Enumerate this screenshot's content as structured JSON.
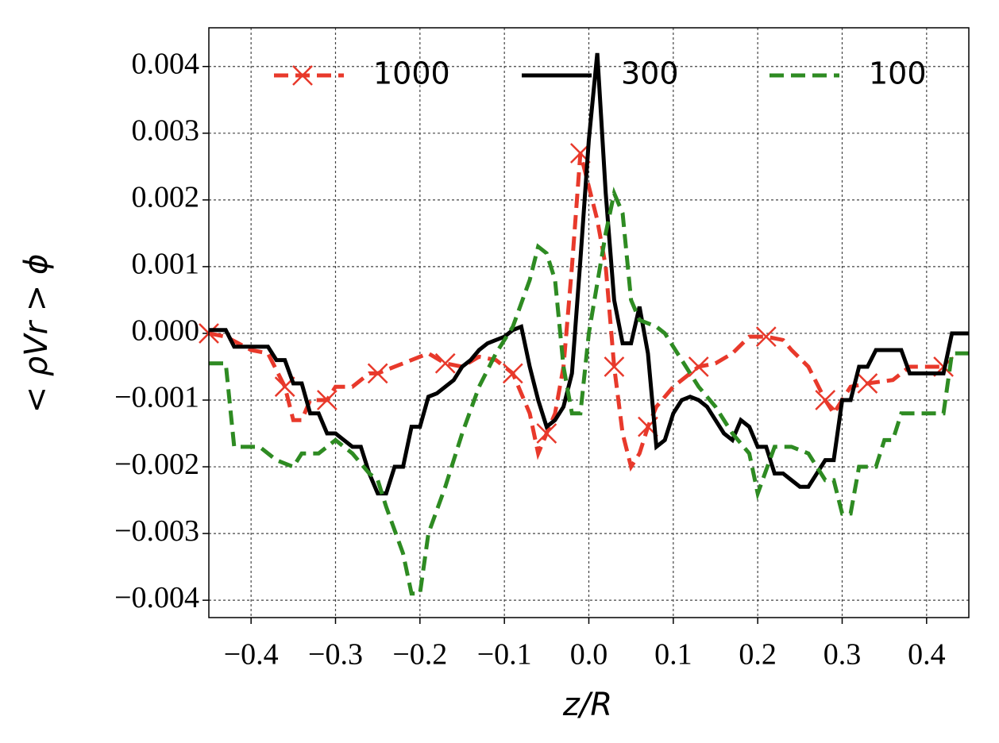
{
  "chart_data": {
    "type": "line",
    "x_label": "z/R",
    "y_label": "< ρVr > ϕ",
    "xlim": [
      -0.45,
      0.45
    ],
    "ylim": [
      -0.00426,
      0.00458
    ],
    "xticks": [
      {
        "value": -0.4,
        "label": "−0.4"
      },
      {
        "value": -0.3,
        "label": "−0.3"
      },
      {
        "value": -0.2,
        "label": "−0.2"
      },
      {
        "value": -0.1,
        "label": "−0.1"
      },
      {
        "value": 0,
        "label": "0.0"
      },
      0.1,
      0.2,
      0.3,
      0.4
    ],
    "yticks": [
      {
        "value": -0.004,
        "label": "−0.004"
      },
      {
        "value": -0.003,
        "label": "−0.003"
      },
      {
        "value": -0.002,
        "label": "−0.002"
      },
      {
        "value": -0.001,
        "label": "−0.001"
      },
      {
        "value": 0,
        "label": "0.000"
      },
      0.001,
      0.002,
      0.003,
      0.004
    ],
    "grid": true,
    "legend": "top",
    "series": [
      {
        "name": "1000",
        "color": "#e8392b",
        "dash": true,
        "marker": "x",
        "marker_every": 4,
        "x": [
          -0.45,
          -0.43,
          -0.4,
          -0.38,
          -0.36,
          -0.35,
          -0.34,
          -0.33,
          -0.31,
          -0.3,
          -0.28,
          -0.26,
          -0.25,
          -0.23,
          -0.21,
          -0.19,
          -0.17,
          -0.15,
          -0.13,
          -0.11,
          -0.09,
          -0.08,
          -0.07,
          -0.06,
          -0.05,
          -0.04,
          -0.03,
          -0.02,
          -0.01,
          0.0,
          0.01,
          0.02,
          0.03,
          0.04,
          0.05,
          0.06,
          0.07,
          0.08,
          0.1,
          0.12,
          0.13,
          0.15,
          0.17,
          0.19,
          0.21,
          0.23,
          0.24,
          0.26,
          0.28,
          0.29,
          0.3,
          0.31,
          0.33,
          0.36,
          0.38,
          0.4,
          0.42
        ],
        "values": [
          0.0,
          -5e-05,
          -0.00025,
          -0.0003,
          -0.0008,
          -0.0013,
          -0.0013,
          -0.001,
          -0.001,
          -0.0008,
          -0.0008,
          -0.0006,
          -0.0006,
          -0.0005,
          -0.0004,
          -0.0003,
          -0.00045,
          -0.0005,
          -0.00035,
          -0.0004,
          -0.0006,
          -0.0009,
          -0.0012,
          -0.0018,
          -0.0015,
          -0.0012,
          -0.0005,
          0.001,
          0.0027,
          0.0022,
          0.0017,
          0.001,
          -0.0005,
          -0.0015,
          -0.002,
          -0.0018,
          -0.0014,
          -0.0011,
          -0.0008,
          -0.0006,
          -0.0005,
          -0.00045,
          -0.0003,
          -5e-05,
          -5e-05,
          -0.0001,
          -0.00025,
          -0.0005,
          -0.001,
          -0.0012,
          -0.001,
          -0.0008,
          -0.00075,
          -0.0007,
          -0.0005,
          -0.0005,
          -0.0005
        ]
      },
      {
        "name": "300",
        "color": "#000000",
        "dash": false,
        "x": [
          -0.45,
          -0.43,
          -0.42,
          -0.38,
          -0.37,
          -0.36,
          -0.35,
          -0.34,
          -0.33,
          -0.32,
          -0.31,
          -0.3,
          -0.29,
          -0.28,
          -0.27,
          -0.26,
          -0.25,
          -0.24,
          -0.23,
          -0.22,
          -0.21,
          -0.2,
          -0.19,
          -0.18,
          -0.17,
          -0.16,
          -0.15,
          -0.14,
          -0.13,
          -0.12,
          -0.11,
          -0.1,
          -0.09,
          -0.08,
          -0.07,
          -0.06,
          -0.05,
          -0.04,
          -0.03,
          -0.02,
          -0.01,
          0.0,
          0.01,
          0.02,
          0.03,
          0.04,
          0.05,
          0.06,
          0.07,
          0.08,
          0.09,
          0.1,
          0.11,
          0.12,
          0.13,
          0.14,
          0.15,
          0.16,
          0.17,
          0.18,
          0.19,
          0.2,
          0.21,
          0.22,
          0.23,
          0.24,
          0.25,
          0.26,
          0.27,
          0.28,
          0.29,
          0.3,
          0.31,
          0.32,
          0.33,
          0.34,
          0.37,
          0.38,
          0.42,
          0.43,
          0.45
        ],
        "values": [
          5e-05,
          5e-05,
          -0.0002,
          -0.0002,
          -0.0004,
          -0.0004,
          -0.00075,
          -0.00075,
          -0.0012,
          -0.0012,
          -0.0015,
          -0.0015,
          -0.0016,
          -0.0017,
          -0.0017,
          -0.0021,
          -0.0024,
          -0.0024,
          -0.002,
          -0.002,
          -0.0014,
          -0.0014,
          -0.00095,
          -0.0009,
          -0.0008,
          -0.0007,
          -0.0005,
          -0.0004,
          -0.00025,
          -0.00015,
          -0.0001,
          -5e-05,
          5e-05,
          0.0001,
          -0.0005,
          -0.001,
          -0.0014,
          -0.0013,
          -0.0011,
          -0.0006,
          0.0011,
          0.0029,
          0.0042,
          0.0021,
          0.0005,
          -0.00015,
          -0.00015,
          0.0004,
          -0.0003,
          -0.0017,
          -0.0016,
          -0.0012,
          -0.001,
          -0.00095,
          -0.001,
          -0.0011,
          -0.0013,
          -0.0015,
          -0.0016,
          -0.0013,
          -0.0014,
          -0.0017,
          -0.0017,
          -0.0021,
          -0.0021,
          -0.0022,
          -0.0023,
          -0.0023,
          -0.0021,
          -0.0019,
          -0.0019,
          -0.001,
          -0.001,
          -0.0005,
          -0.0005,
          -0.00025,
          -0.00025,
          -0.0006,
          -0.0006,
          0.0,
          0.0
        ]
      },
      {
        "name": "100",
        "color": "#2e8b22",
        "dash": true,
        "x": [
          -0.45,
          -0.43,
          -0.42,
          -0.39,
          -0.37,
          -0.35,
          -0.34,
          -0.32,
          -0.3,
          -0.28,
          -0.26,
          -0.25,
          -0.24,
          -0.22,
          -0.21,
          -0.2,
          -0.19,
          -0.17,
          -0.15,
          -0.13,
          -0.11,
          -0.09,
          -0.07,
          -0.06,
          -0.05,
          -0.04,
          -0.03,
          -0.02,
          -0.01,
          0.0,
          0.02,
          0.03,
          0.04,
          0.05,
          0.06,
          0.08,
          0.09,
          0.11,
          0.13,
          0.15,
          0.17,
          0.19,
          0.2,
          0.22,
          0.24,
          0.26,
          0.28,
          0.29,
          0.3,
          0.31,
          0.32,
          0.34,
          0.35,
          0.36,
          0.37,
          0.38,
          0.4,
          0.42,
          0.43,
          0.45
        ],
        "values": [
          -0.00045,
          -0.00045,
          -0.0017,
          -0.0017,
          -0.0019,
          -0.002,
          -0.0018,
          -0.0018,
          -0.0016,
          -0.0018,
          -0.0021,
          -0.0022,
          -0.0026,
          -0.0033,
          -0.0039,
          -0.0039,
          -0.003,
          -0.0023,
          -0.0015,
          -0.0008,
          -0.0003,
          0.0001,
          0.0008,
          0.0013,
          0.0012,
          0.0008,
          -0.0005,
          -0.0012,
          -0.0012,
          0.0,
          0.0015,
          0.0021,
          0.0018,
          0.0005,
          0.0002,
          0.0001,
          0.0,
          -0.0004,
          -0.0008,
          -0.0011,
          -0.0015,
          -0.0018,
          -0.0024,
          -0.0017,
          -0.0017,
          -0.0018,
          -0.0022,
          -0.0022,
          -0.0027,
          -0.0027,
          -0.002,
          -0.002,
          -0.0016,
          -0.0016,
          -0.0012,
          -0.0012,
          -0.0012,
          -0.0012,
          -0.0003,
          -0.0003
        ]
      }
    ]
  }
}
